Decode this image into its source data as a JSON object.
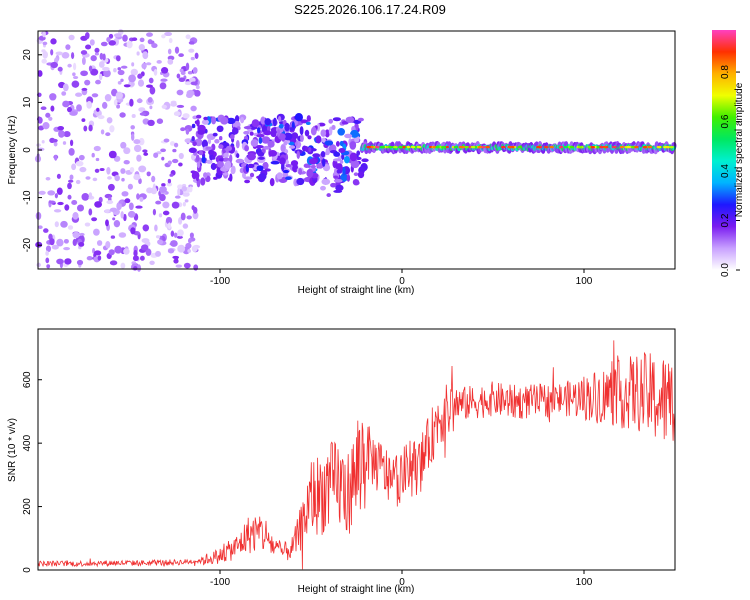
{
  "figure": {
    "title": "S225.2026.106.17.24.R09"
  },
  "chart_data": [
    {
      "type": "heatmap",
      "name": "spectrogram",
      "xlabel": "Height of straight line (km)",
      "ylabel": "Frequency (Hz)",
      "xlim": [
        -200,
        150
      ],
      "ylim": [
        -25,
        25
      ],
      "xticks": [
        -100,
        0,
        100
      ],
      "yticks": [
        -20,
        -10,
        0,
        10,
        20
      ],
      "colorbar": {
        "label": "Normalized spectral amplitude",
        "range": [
          0,
          0.97
        ],
        "ticks": [
          "0.0",
          "0.2",
          "0.4",
          "0.6",
          "0.8"
        ],
        "tick_values": [
          0,
          0.2,
          0.4,
          0.6,
          0.8
        ],
        "colors": [
          "#ffffff",
          "#c8a0ff",
          "#7a1cf0",
          "#1e18ff",
          "#00b4ff",
          "#00f0d0",
          "#00e860",
          "#40f000",
          "#f0ff00",
          "#ffb000",
          "#ff3000",
          "#ff40c0"
        ]
      },
      "features": [
        {
          "region": "noise",
          "x_range": [
            -200,
            -115
          ],
          "freq_range": [
            -25,
            25
          ],
          "amplitude": "low, scattered"
        },
        {
          "region": "transition",
          "x_range": [
            -115,
            -20
          ],
          "freq_range": [
            -12,
            7
          ],
          "amplitude": "0.1-0.3"
        },
        {
          "region": "signal",
          "x_range": [
            -20,
            150
          ],
          "center_freq": 0.5,
          "half_width": 1.5,
          "amplitude": "0.5-0.95"
        }
      ]
    },
    {
      "type": "line",
      "name": "snr",
      "xlabel": "Height of straight line (km)",
      "ylabel": "SNR (10 * v/v)",
      "xlim": [
        -200,
        150
      ],
      "ylim": [
        0,
        760
      ],
      "xticks": [
        -100,
        0,
        100
      ],
      "yticks": [
        0,
        200,
        400,
        600
      ],
      "color": "#f03030",
      "x": [
        -200,
        -180,
        -160,
        -140,
        -120,
        -110,
        -100,
        -90,
        -85,
        -80,
        -75,
        -70,
        -65,
        -60,
        -55,
        -50,
        -45,
        -40,
        -35,
        -30,
        -25,
        -20,
        -15,
        -10,
        -5,
        0,
        5,
        10,
        15,
        20,
        25,
        30,
        40,
        50,
        60,
        70,
        80,
        90,
        100,
        110,
        120,
        130,
        140,
        150
      ],
      "y": [
        20,
        20,
        22,
        22,
        25,
        30,
        45,
        75,
        110,
        120,
        110,
        70,
        55,
        70,
        140,
        230,
        240,
        260,
        270,
        240,
        300,
        380,
        340,
        310,
        280,
        300,
        320,
        330,
        400,
        480,
        500,
        520,
        530,
        540,
        530,
        530,
        535,
        540,
        545,
        550,
        555,
        560,
        540,
        520
      ]
    }
  ]
}
